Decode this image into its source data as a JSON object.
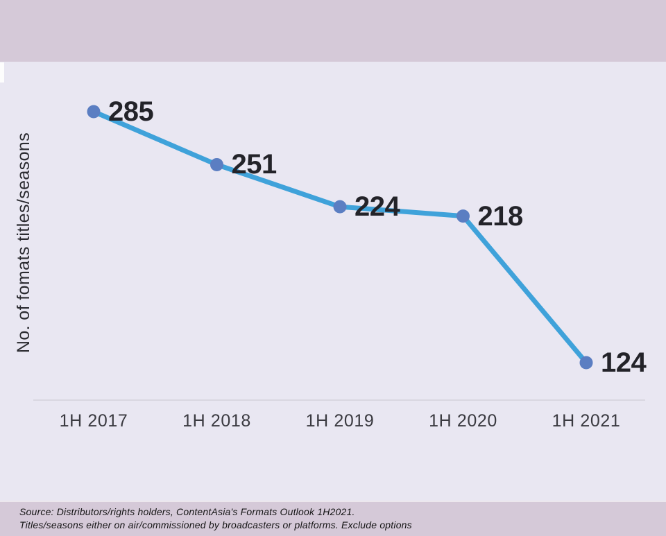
{
  "chart_data": {
    "type": "line",
    "categories": [
      "1H 2017",
      "1H 2018",
      "1H 2019",
      "1H 2020",
      "1H 2021"
    ],
    "values": [
      285,
      251,
      224,
      218,
      124
    ],
    "title": "",
    "xlabel": "",
    "ylabel": "No. of fomats titles/seasons",
    "ylim": [
      124,
      285
    ],
    "grid": false,
    "legend": false,
    "data_labels": [
      "285",
      "251",
      "224",
      "218",
      "124"
    ]
  },
  "footer": {
    "line1": "Source: Distributors/rights holders, ContentAsia's Formats Outlook 1H2021.",
    "line2": "Titles/seasons either on air/commissioned by broadcasters or platforms. Exclude options"
  },
  "colors": {
    "band": "#d5c9d8",
    "bg_main": "#e9e7f2",
    "line": "#3fa2da",
    "marker": "#5b7ec2",
    "value_label": "#232329",
    "tick_text": "#3a3a40",
    "axis_line": "#d9d7e1",
    "footer_text": "#141414"
  }
}
